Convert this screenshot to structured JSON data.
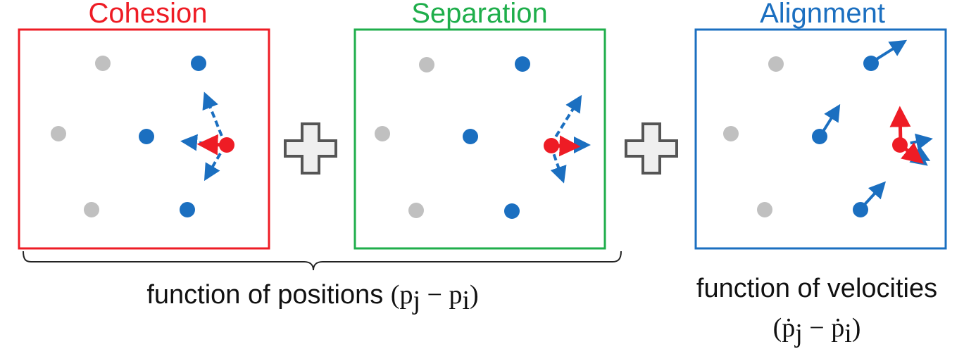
{
  "colors": {
    "cohesion": "#ee1c25",
    "separation": "#1fae4b",
    "alignment": "#1b6fc0",
    "neighbor": "#1b6fc0",
    "non_neighbor": "#c0c0c0",
    "focal": "#ee1c25",
    "plus_fill": "#efefef",
    "plus_stroke": "#555555"
  },
  "panels": [
    {
      "key": "cohesion",
      "title": "Cohesion"
    },
    {
      "key": "separation",
      "title": "Separation"
    },
    {
      "key": "alignment",
      "title": "Alignment"
    }
  ],
  "operators": [
    "plus-sign",
    "plus-sign"
  ],
  "captions": {
    "positions": {
      "text": "function of positions ",
      "math": {
        "open": "(",
        "a": "p",
        "a_sub": "j",
        "minus": " − ",
        "b": "p",
        "b_sub": "i",
        "close": ")"
      }
    },
    "velocities": {
      "text": "function of velocities",
      "math": {
        "open": "(",
        "a": "ṗ",
        "a_sub": "j",
        "minus": " − ",
        "b": "ṗ",
        "b_sub": "i",
        "close": ")"
      }
    }
  }
}
